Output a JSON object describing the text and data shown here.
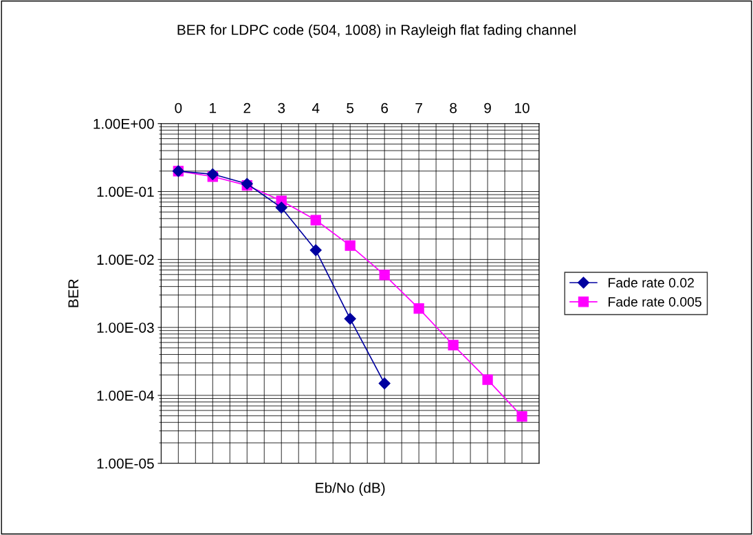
{
  "chart_data": {
    "type": "line",
    "title": "BER for LDPC code (504, 1008) in Rayleigh flat fading channel",
    "xlabel": "Eb/No (dB)",
    "ylabel": "BER",
    "categories": [
      "0",
      "1",
      "2",
      "3",
      "4",
      "5",
      "6",
      "7",
      "8",
      "9",
      "10"
    ],
    "series": [
      {
        "name": "Fade rate 0.02",
        "color": "#0000a0",
        "marker": "diamond",
        "values": [
          0.2,
          0.18,
          0.13,
          0.058,
          0.0137,
          0.00134,
          0.00015,
          null,
          null,
          null,
          null
        ]
      },
      {
        "name": "Fade rate 0.005",
        "color": "#ff00ff",
        "marker": "square",
        "values": [
          0.2,
          0.166,
          0.123,
          0.073,
          0.038,
          0.016,
          0.0059,
          0.0019,
          0.00055,
          0.00017,
          4.9e-05
        ]
      }
    ],
    "log": "y",
    "ylim": [
      1e-05,
      1
    ],
    "yticks": [
      {
        "value": 1e-05,
        "label": "1.00E-05"
      },
      {
        "value": 0.0001,
        "label": "1.00E-04"
      },
      {
        "value": 0.001,
        "label": "1.00E-03"
      },
      {
        "value": 0.01,
        "label": "1.00E-02"
      },
      {
        "value": 0.1,
        "label": "1.00E-01"
      },
      {
        "value": 1,
        "label": "1.00E+00"
      }
    ],
    "grid": true,
    "legend": "right",
    "line_style": "solid"
  }
}
